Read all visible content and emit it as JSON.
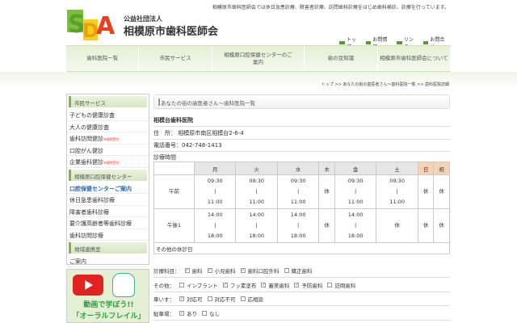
{
  "header": {
    "tagline": "相模原市歯科医師会では休日急患診療、障害者診療、訪問歯科診療をはじめ歯科検診、診療を行っています。",
    "logo_text": "SDA Sagamihara Dental Association",
    "org_small": "公益社団法人",
    "org_big": "相模原市歯科医師会",
    "links": [
      "トップ",
      "お問情報",
      "リンク",
      "お問合せ"
    ]
  },
  "nav": [
    "歯科医院一覧",
    "市民サービス",
    "相模原口腔保健センターのご案内",
    "歯の豆知識",
    "相模原市歯科医師会について"
  ],
  "breadcrumb": "トップ >> あなたの街の歯医者さん〜歯科医院一覧 >> 歯科医院詳細",
  "sidebar": {
    "sections": [
      {
        "title": "市民サービス",
        "items": [
          {
            "label": "子どもの健康診査"
          },
          {
            "label": "大人の健康診査"
          },
          {
            "label": "歯科訪問健診",
            "note": "※随時受付"
          },
          {
            "label": "口腔がん健診"
          },
          {
            "label": "企業歯科健診",
            "note": "※随時受付"
          }
        ]
      },
      {
        "title": "相模原口腔保健センター",
        "items": [
          {
            "label": "口腔保健センターご案内",
            "active": true
          },
          {
            "label": "休日急患歯科診療"
          },
          {
            "label": "障害者歯科診療"
          },
          {
            "label": "要介護高齢者等歯科診療"
          },
          {
            "label": "歯科訪問診療"
          }
        ]
      },
      {
        "title": "地域連携室",
        "items": [
          {
            "label": "ご案内"
          }
        ]
      }
    ]
  },
  "banner": {
    "line1": "動画で学ぼう!!",
    "line2": "「オーラルフレイル」"
  },
  "main": {
    "title": "あなたの街の歯医者さん〜歯科医院一覧",
    "clinic_name": "相模台歯科医院",
    "address_label": "住　所：",
    "address": "相模原市南区相模台2-6-4",
    "tel_label": "電話番号：",
    "tel": "042-748-1413",
    "hours_label": "診療時間",
    "schedule": {
      "days": [
        "月",
        "火",
        "水",
        "木",
        "金",
        "土",
        "日",
        "祝"
      ],
      "holiday_color": "#f8d3b3",
      "rows": [
        {
          "label": "午前",
          "cells": [
            "09:30\n|\n11:00",
            "09:30\n|\n11:00",
            "09:30\n|\n11:00",
            "休",
            "09:30\n|\n11:00",
            "09:30\n|\n11:00",
            "休",
            "休"
          ]
        },
        {
          "label": "午後1",
          "cells": [
            "14:00\n|\n18:00",
            "14:00\n|\n18:00",
            "14:00\n|\n18:00",
            "休",
            "14:00\n|\n18:00",
            "休",
            "休",
            "休"
          ]
        }
      ],
      "other_label": "その他の休診日"
    },
    "options": [
      {
        "label": "診療科目：",
        "items": [
          {
            "t": "歯科",
            "c": true
          },
          {
            "t": "小児歯科",
            "c": true
          },
          {
            "t": "歯科口腔外科",
            "c": true
          },
          {
            "t": "矯正歯科",
            "c": false
          }
        ]
      },
      {
        "label": "その他：",
        "items": [
          {
            "t": "インプラント",
            "c": false
          },
          {
            "t": "フッ素塗布",
            "c": true
          },
          {
            "t": "審美歯科",
            "c": true
          },
          {
            "t": "予防歯科",
            "c": true
          },
          {
            "t": "訪問歯科",
            "c": false
          }
        ]
      },
      {
        "label": "車いす：",
        "items": [
          {
            "t": "対応可",
            "c": true
          },
          {
            "t": "対応不可",
            "c": false
          },
          {
            "t": "応相談",
            "c": false
          }
        ]
      },
      {
        "label": "駐車場：",
        "items": [
          {
            "t": "あり",
            "c": true
          },
          {
            "t": "なし",
            "c": false
          }
        ]
      }
    ]
  }
}
